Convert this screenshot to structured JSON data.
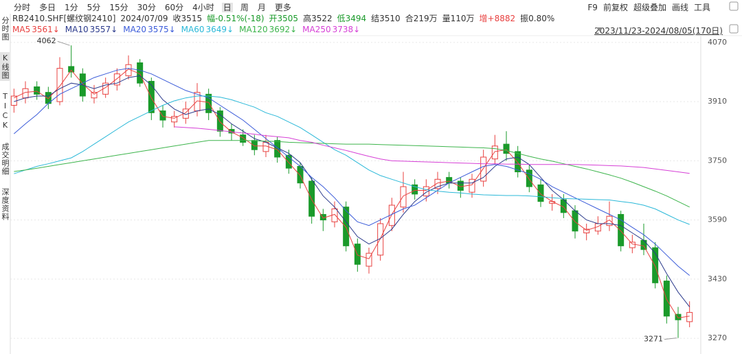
{
  "toolbar": {
    "tabs": [
      "分时",
      "多日",
      "1分",
      "5分",
      "15分",
      "30分",
      "60分",
      "4小时",
      "日",
      "周",
      "月",
      "更多"
    ],
    "active_tab": "日"
  },
  "tools": [
    "F9",
    "前复权",
    "超级叠加",
    "画线",
    "工具"
  ],
  "sidebar": {
    "tabs": [
      "分时图",
      "K线图",
      "TICK",
      "成交明细",
      "深度资料"
    ],
    "active_tab": "K线图"
  },
  "quote": [
    {
      "text": "RB2410.SHF[螺纹钢2410]",
      "color": "#333333"
    },
    {
      "text": "2024/07/09",
      "color": "#333333"
    },
    {
      "text": "收3515",
      "color": "#333333"
    },
    {
      "text": "幅-0.51%(-18)",
      "color": "#1a9a2a"
    },
    {
      "text": "开3505",
      "color": "#1a9a2a"
    },
    {
      "text": "高3522",
      "color": "#333333"
    },
    {
      "text": "低3494",
      "color": "#1a9a2a"
    },
    {
      "text": "结3510",
      "color": "#333333"
    },
    {
      "text": "合219万",
      "color": "#333333"
    },
    {
      "text": "量110万",
      "color": "#333333"
    },
    {
      "text": "增+8882",
      "color": "#e8403f"
    },
    {
      "text": "振0.80%",
      "color": "#333333"
    }
  ],
  "date_range": "2023/11/23-2024/08/05(170日)",
  "chart_data": {
    "type": "candlestick",
    "open": [
      3900,
      3920,
      3950,
      3935,
      3910,
      4005,
      3985,
      3920,
      3930,
      3955,
      3980,
      4015,
      3965,
      3885,
      3855,
      3865,
      3885,
      3930,
      3885,
      3835,
      3820,
      3805,
      3775,
      3805,
      3765,
      3735,
      3695,
      3605,
      3585,
      3625,
      3525,
      3465,
      3495,
      3575,
      3625,
      3685,
      3655,
      3675,
      3705,
      3695,
      3665,
      3695,
      3755,
      3795,
      3775,
      3725,
      3685,
      3635,
      3645,
      3615,
      3555,
      3560,
      3575,
      3605,
      3515,
      3535,
      3515,
      3425,
      3335,
      3315
    ],
    "high": [
      3945,
      3965,
      3965,
      3950,
      4030,
      4062,
      4000,
      3955,
      3975,
      4000,
      4035,
      4025,
      3975,
      3900,
      3885,
      3910,
      3960,
      3945,
      3895,
      3850,
      3835,
      3820,
      3820,
      3815,
      3780,
      3745,
      3705,
      3620,
      3640,
      3640,
      3540,
      3515,
      3595,
      3650,
      3720,
      3700,
      3700,
      3720,
      3720,
      3705,
      3715,
      3780,
      3820,
      3830,
      3790,
      3740,
      3700,
      3660,
      3660,
      3630,
      3580,
      3600,
      3640,
      3615,
      3550,
      3580,
      3530,
      3440,
      3355,
      3370
    ],
    "low": [
      3880,
      3905,
      3915,
      3890,
      3900,
      3975,
      3910,
      3905,
      3920,
      3940,
      3970,
      3950,
      3860,
      3840,
      3840,
      3850,
      3870,
      3860,
      3815,
      3805,
      3790,
      3765,
      3760,
      3745,
      3715,
      3675,
      3580,
      3560,
      3570,
      3505,
      3450,
      3445,
      3480,
      3560,
      3610,
      3645,
      3640,
      3660,
      3675,
      3650,
      3650,
      3680,
      3740,
      3750,
      3705,
      3665,
      3625,
      3615,
      3595,
      3540,
      3535,
      3550,
      3560,
      3505,
      3500,
      3495,
      3405,
      3310,
      3271,
      3300
    ],
    "close": [
      3925,
      3945,
      3930,
      3905,
      4000,
      3990,
      3925,
      3935,
      3960,
      3985,
      4010,
      3960,
      3880,
      3860,
      3870,
      3890,
      3935,
      3880,
      3830,
      3825,
      3800,
      3780,
      3800,
      3760,
      3730,
      3690,
      3600,
      3590,
      3620,
      3520,
      3470,
      3500,
      3580,
      3630,
      3680,
      3660,
      3680,
      3700,
      3690,
      3670,
      3700,
      3760,
      3790,
      3770,
      3720,
      3680,
      3640,
      3640,
      3610,
      3560,
      3565,
      3580,
      3600,
      3520,
      3530,
      3510,
      3420,
      3330,
      3320,
      3340
    ],
    "up_color": "#e8403f",
    "down_color": "#1a9a2a",
    "series": [
      {
        "name": "MA5",
        "last_label": "3561↓",
        "color": "#e8403f",
        "values": [
          3920,
          3935,
          3938,
          3918,
          3952,
          3995,
          3958,
          3930,
          3948,
          3972,
          3998,
          3985,
          3920,
          3870,
          3865,
          3880,
          3912,
          3908,
          3855,
          3828,
          3812,
          3790,
          3790,
          3780,
          3745,
          3710,
          3645,
          3595,
          3605,
          3570,
          3495,
          3485,
          3540,
          3605,
          3655,
          3670,
          3670,
          3690,
          3695,
          3680,
          3685,
          3730,
          3775,
          3780,
          3745,
          3700,
          3660,
          3640,
          3625,
          3585,
          3562,
          3572,
          3590,
          3560,
          3525,
          3520,
          3465,
          3375,
          3325,
          3330
        ]
      },
      {
        "name": "MA10",
        "last_label": "3557↓",
        "color": "#2b3a8c",
        "values": [
          3910,
          3920,
          3925,
          3925,
          3945,
          3960,
          3955,
          3945,
          3955,
          3960,
          3975,
          3980,
          3955,
          3915,
          3890,
          3875,
          3885,
          3890,
          3875,
          3850,
          3830,
          3810,
          3800,
          3785,
          3770,
          3745,
          3700,
          3655,
          3625,
          3585,
          3545,
          3525,
          3540,
          3565,
          3605,
          3640,
          3665,
          3680,
          3690,
          3690,
          3690,
          3705,
          3735,
          3755,
          3760,
          3740,
          3705,
          3670,
          3645,
          3615,
          3590,
          3580,
          3580,
          3575,
          3555,
          3535,
          3500,
          3445,
          3395,
          3355
        ]
      },
      {
        "name": "MA20",
        "last_label": "3575↓",
        "color": "#3a5bd9",
        "values": [
          3823,
          3850,
          3875,
          3905,
          3930,
          3945,
          3960,
          3975,
          3985,
          3995,
          4000,
          3995,
          3985,
          3970,
          3955,
          3940,
          3930,
          3920,
          3900,
          3880,
          3860,
          3835,
          3810,
          3785,
          3760,
          3735,
          3705,
          3680,
          3650,
          3615,
          3585,
          3575,
          3590,
          3605,
          3620,
          3630,
          3650,
          3670,
          3690,
          3705,
          3720,
          3735,
          3740,
          3735,
          3725,
          3715,
          3700,
          3680,
          3665,
          3650,
          3635,
          3620,
          3605,
          3590,
          3570,
          3550,
          3525,
          3495,
          3465,
          3440
        ]
      },
      {
        "name": "MA60",
        "last_label": "3649↓",
        "color": "#2ab8d8",
        "values": [
          3715,
          3725,
          3735,
          3742,
          3750,
          3758,
          3775,
          3795,
          3815,
          3835,
          3855,
          3870,
          3885,
          3900,
          3912,
          3920,
          3925,
          3925,
          3922,
          3915,
          3905,
          3895,
          3880,
          3870,
          3855,
          3840,
          3820,
          3800,
          3780,
          3765,
          3745,
          3725,
          3710,
          3700,
          3690,
          3680,
          3672,
          3668,
          3665,
          3663,
          3660,
          3658,
          3657,
          3656,
          3656,
          3655,
          3653,
          3650,
          3648,
          3647,
          3646,
          3645,
          3644,
          3640,
          3636,
          3630,
          3620,
          3605,
          3590,
          3578
        ]
      },
      {
        "name": "MA120",
        "last_label": "3692↓",
        "color": "#3cb44b",
        "values": [
          3721,
          3725,
          3730,
          3735,
          3740,
          3745,
          3750,
          3755,
          3760,
          3765,
          3770,
          3775,
          3780,
          3785,
          3790,
          3795,
          3800,
          3805,
          3805,
          3805,
          3805,
          3804,
          3803,
          3802,
          3800,
          3799,
          3798,
          3797,
          3796,
          3795,
          3795,
          3795,
          3794,
          3793,
          3792,
          3791,
          3790,
          3789,
          3788,
          3787,
          3786,
          3785,
          3783,
          3778,
          3770,
          3762,
          3755,
          3749,
          3742,
          3735,
          3728,
          3720,
          3712,
          3703,
          3692,
          3680,
          3668,
          3655,
          3640,
          3625
        ]
      },
      {
        "name": "MA250",
        "last_label": "3738↓",
        "color": "#d63fd6",
        "values": [
          null,
          null,
          null,
          null,
          null,
          null,
          null,
          null,
          null,
          null,
          null,
          null,
          null,
          null,
          3842,
          3840,
          3838,
          3835,
          3832,
          3828,
          3825,
          3822,
          3818,
          3815,
          3812,
          3805,
          3800,
          3792,
          3785,
          3778,
          3770,
          3762,
          3755,
          3750,
          3749,
          3748,
          3747,
          3746,
          3745,
          3744,
          3743,
          3742,
          3742,
          3741,
          3741,
          3740,
          3740,
          3740,
          3740,
          3740,
          3739,
          3738,
          3737,
          3736,
          3734,
          3732,
          3728,
          3724,
          3720,
          3716
        ]
      }
    ],
    "annotations": [
      4062,
      3271
    ],
    "ylim": [
      3248,
      4092
    ],
    "yticks": [
      4070,
      3910,
      3750,
      3590,
      3430,
      3270
    ],
    "grid": true
  }
}
